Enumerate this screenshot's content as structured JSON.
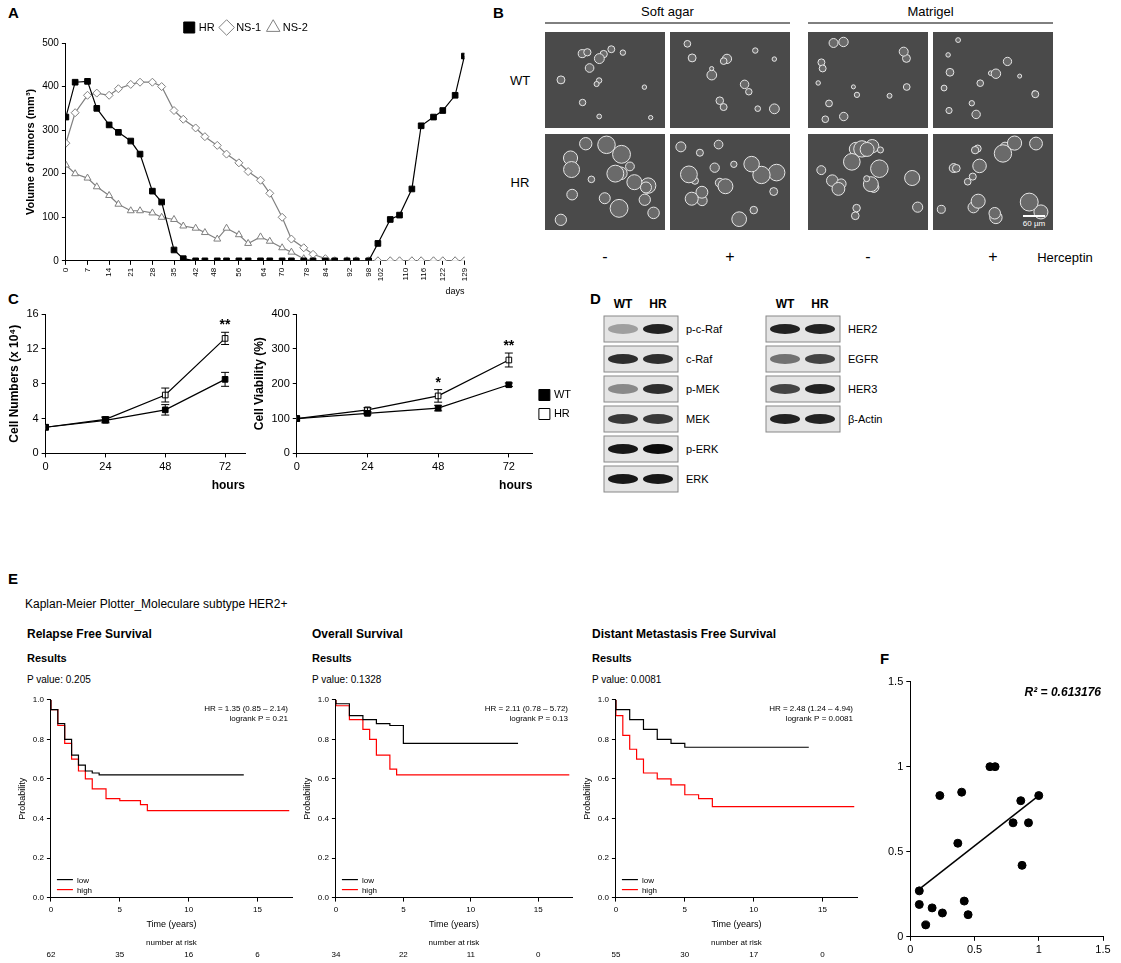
{
  "panel_labels": [
    "A",
    "B",
    "C",
    "D",
    "E",
    "F"
  ],
  "chart_data": [
    {
      "type": "line",
      "ylabel": "Volume of tumors (mm³)",
      "xlabel": "days",
      "x": [
        0,
        3,
        7,
        10,
        14,
        17,
        21,
        24,
        28,
        31,
        35,
        38,
        42,
        45,
        49,
        52,
        56,
        59,
        63,
        66,
        70,
        73,
        77,
        80,
        84,
        87,
        91,
        94,
        98,
        101,
        105,
        108,
        112,
        115,
        119,
        122,
        126,
        129
      ],
      "xlim": [
        0,
        129
      ],
      "xticks": [
        0,
        7,
        14,
        21,
        28,
        35,
        42,
        48,
        56,
        64,
        70,
        78,
        84,
        92,
        98,
        102,
        110,
        116,
        122,
        129
      ],
      "ylim": [
        0,
        500
      ],
      "yticks": [
        0,
        100,
        200,
        300,
        400,
        500
      ],
      "grid": false,
      "legend": "top",
      "series": [
        {
          "name": "HR",
          "color": "#000000",
          "marker": "square",
          "line_style": "solid",
          "values": [
            330,
            410,
            412,
            350,
            312,
            295,
            275,
            245,
            160,
            135,
            25,
            5,
            0,
            0,
            0,
            0,
            0,
            0,
            0,
            0,
            0,
            0,
            0,
            0,
            0,
            0,
            0,
            0,
            0,
            40,
            95,
            105,
            165,
            310,
            330,
            345,
            380,
            470
          ]
        },
        {
          "name": "NS-1",
          "color": "#808080",
          "marker": "diamond_open",
          "line_style": "solid",
          "values": [
            270,
            340,
            380,
            385,
            380,
            395,
            405,
            410,
            410,
            400,
            345,
            325,
            305,
            285,
            265,
            245,
            225,
            205,
            185,
            155,
            100,
            50,
            30,
            15,
            5,
            0,
            0,
            0,
            0,
            0,
            0,
            0,
            0,
            0,
            0,
            0,
            0,
            0
          ]
        },
        {
          "name": "NS-2",
          "color": "#808080",
          "marker": "triangle_open",
          "line_style": "solid",
          "values": [
            220,
            200,
            190,
            170,
            150,
            130,
            115,
            115,
            110,
            100,
            95,
            80,
            75,
            65,
            50,
            75,
            60,
            40,
            55,
            45,
            30,
            20,
            5,
            0,
            0,
            0,
            0,
            0,
            0,
            0,
            0,
            0,
            0,
            0,
            0,
            0,
            0,
            0
          ]
        }
      ]
    },
    {
      "type": "line",
      "ylabel": "Cell Numbers (x 10⁴)",
      "xlabel": "hours",
      "x": [
        0,
        24,
        48,
        72
      ],
      "xlim": [
        0,
        80
      ],
      "xticks": [
        0,
        24,
        48,
        72
      ],
      "ylim": [
        0,
        16
      ],
      "yticks": [
        0,
        4,
        8,
        12,
        16
      ],
      "grid": false,
      "series": [
        {
          "name": "WT",
          "color": "#000000",
          "marker": "square",
          "line_style": "solid",
          "values": [
            3,
            3.8,
            5.0,
            8.5
          ],
          "errors": [
            0,
            0.3,
            0.6,
            0.8
          ]
        },
        {
          "name": "HR",
          "color": "#000000",
          "marker": "square_open",
          "line_style": "solid",
          "values": [
            3,
            3.9,
            6.7,
            13.2
          ],
          "errors": [
            0,
            0.3,
            0.8,
            0.7
          ]
        }
      ],
      "annotations": [
        {
          "text": "**",
          "x": 72
        }
      ]
    },
    {
      "type": "line",
      "ylabel": "Cell Viability (%)",
      "xlabel": "hours",
      "x": [
        0,
        24,
        48,
        72
      ],
      "xlim": [
        0,
        80
      ],
      "xticks": [
        0,
        24,
        48,
        72
      ],
      "ylim": [
        0,
        400
      ],
      "yticks": [
        0,
        100,
        200,
        300,
        400
      ],
      "grid": false,
      "legend": "right",
      "series": [
        {
          "name": "WT",
          "color": "#000000",
          "marker": "square",
          "line_style": "solid",
          "values": [
            100,
            115,
            130,
            197
          ],
          "errors": [
            0,
            4,
            8,
            5
          ]
        },
        {
          "name": "HR",
          "color": "#000000",
          "marker": "square_open",
          "line_style": "solid",
          "values": [
            100,
            125,
            165,
            268
          ],
          "errors": [
            0,
            6,
            18,
            20
          ]
        }
      ],
      "annotations": [
        {
          "text": "*",
          "x": 48
        },
        {
          "text": "**",
          "x": 72
        }
      ]
    },
    {
      "type": "line",
      "title": "Relapse Free Survival",
      "subtitle": [
        "Results",
        "P value: 0.205"
      ],
      "ylabel": "Probability",
      "xlabel": "Time (years)",
      "xlim": [
        0,
        17.5
      ],
      "xticks": [
        0,
        5,
        10,
        15
      ],
      "ylim": [
        0,
        1
      ],
      "yticks": [
        {
          "value": 0,
          "label": "0.0"
        },
        0.2,
        0.4,
        0.6,
        0.8,
        {
          "value": 1,
          "label": "1.0"
        }
      ],
      "grid": false,
      "legend": "lower left",
      "annotations": [
        "HR = 1.35 (0.85 – 2.14)",
        "logrank P = 0.21"
      ],
      "series": [
        {
          "name": "low",
          "color": "#000000",
          "line_style": "step",
          "x": [
            0,
            0.5,
            1,
            1.5,
            2,
            2.5,
            3,
            3.5,
            4,
            14
          ],
          "values": [
            1,
            0.95,
            0.88,
            0.8,
            0.72,
            0.67,
            0.64,
            0.63,
            0.62,
            0.62
          ]
        },
        {
          "name": "high",
          "color": "#ff0000",
          "line_style": "step",
          "x": [
            0,
            0.5,
            1,
            1.5,
            2,
            2.5,
            3,
            4,
            5,
            6.5,
            7,
            7.5,
            17.3
          ],
          "values": [
            1,
            0.95,
            0.87,
            0.78,
            0.7,
            0.64,
            0.6,
            0.55,
            0.5,
            0.49,
            0.47,
            0.44,
            0.44
          ]
        }
      ],
      "number_at_risk": {
        "label": "number at risk",
        "x": [
          0,
          5,
          10,
          15
        ],
        "values": [
          62,
          35,
          16,
          6
        ]
      }
    },
    {
      "type": "line",
      "title": "Overall Survival",
      "subtitle": [
        "Results",
        "P value: 0.1328"
      ],
      "ylabel": "Probability",
      "xlabel": "Time (years)",
      "xlim": [
        0,
        17.5
      ],
      "xticks": [
        0,
        5,
        10,
        15
      ],
      "ylim": [
        0,
        1
      ],
      "yticks": [
        {
          "value": 0,
          "label": "0.0"
        },
        0.2,
        0.4,
        0.6,
        0.8,
        {
          "value": 1,
          "label": "1.0"
        }
      ],
      "grid": false,
      "legend": "lower left",
      "annotations": [
        "HR = 2.11 (0.78 – 5.72)",
        "logrank P = 0.13"
      ],
      "series": [
        {
          "name": "low",
          "color": "#000000",
          "line_style": "step",
          "x": [
            0,
            1,
            2,
            3,
            4,
            5,
            6,
            13.5
          ],
          "values": [
            1,
            0.98,
            0.92,
            0.9,
            0.88,
            0.87,
            0.78,
            0.78
          ]
        },
        {
          "name": "high",
          "color": "#ff0000",
          "line_style": "step",
          "x": [
            0,
            1,
            2,
            2.5,
            3,
            4,
            4.5,
            5,
            17.3
          ],
          "values": [
            1,
            0.97,
            0.9,
            0.85,
            0.8,
            0.72,
            0.65,
            0.62,
            0.62
          ]
        }
      ],
      "number_at_risk": {
        "label": "number at risk",
        "x": [
          0,
          5,
          10,
          15
        ],
        "values": [
          34,
          22,
          11,
          0
        ]
      }
    },
    {
      "type": "line",
      "title": "Distant Metastasis Free Survival",
      "subtitle": [
        "Results",
        "P value: 0.0081"
      ],
      "ylabel": "Probability",
      "xlabel": "Time (years)",
      "xlim": [
        0,
        17.5
      ],
      "xticks": [
        0,
        5,
        10,
        15
      ],
      "ylim": [
        0,
        1
      ],
      "yticks": [
        {
          "value": 0,
          "label": "0.0"
        },
        0.2,
        0.4,
        0.6,
        0.8,
        {
          "value": 1,
          "label": "1.0"
        }
      ],
      "grid": false,
      "legend": "lower left",
      "annotations": [
        "HR = 2.48 (1.24 – 4.94)",
        "logrank P = 0.0081"
      ],
      "series": [
        {
          "name": "low",
          "color": "#000000",
          "line_style": "step",
          "x": [
            0,
            1,
            2,
            3,
            4,
            5,
            6,
            14
          ],
          "values": [
            1,
            0.95,
            0.9,
            0.85,
            0.8,
            0.78,
            0.76,
            0.76
          ]
        },
        {
          "name": "high",
          "color": "#ff0000",
          "line_style": "step",
          "x": [
            0,
            0.5,
            1,
            1.5,
            2,
            3,
            4,
            5,
            6,
            7,
            8,
            17.3
          ],
          "values": [
            1,
            0.92,
            0.82,
            0.75,
            0.7,
            0.63,
            0.6,
            0.57,
            0.52,
            0.5,
            0.46,
            0.46
          ]
        }
      ],
      "number_at_risk": {
        "label": "number at risk",
        "x": [
          0,
          5,
          10,
          15
        ],
        "values": [
          55,
          30,
          17,
          0
        ]
      }
    },
    {
      "type": "scatter",
      "color": "#000000",
      "marker": "circle",
      "x": [
        0.07,
        0.07,
        0.12,
        0.17,
        0.23,
        0.25,
        0.37,
        0.4,
        0.42,
        0.45,
        0.62,
        0.66,
        0.8,
        0.86,
        0.87,
        0.92,
        1.0
      ],
      "values": [
        0.27,
        0.19,
        0.07,
        0.17,
        0.83,
        0.14,
        0.55,
        0.85,
        0.21,
        0.13,
        1.0,
        1.0,
        0.67,
        0.8,
        0.42,
        0.67,
        0.83
      ],
      "xlim": [
        0,
        1.5
      ],
      "xticks": [
        0,
        0.5,
        1,
        1.5
      ],
      "ylim": [
        0,
        1.5
      ],
      "yticks": [
        0,
        0.5,
        1,
        1.5
      ],
      "grid": false,
      "trendline": {
        "x": [
          0.07,
          1.0
        ],
        "values": [
          0.28,
          0.83
        ]
      },
      "annotations": [
        "R² = 0.613176"
      ]
    }
  ],
  "panel_b": {
    "column_groups": [
      "Soft agar",
      "Matrigel"
    ],
    "rows": [
      "WT",
      "HR"
    ],
    "treatment": {
      "label": "Herceptin",
      "levels": [
        "-",
        "+",
        "-",
        "+"
      ]
    },
    "scale_bar": "60 µm"
  },
  "panel_d": {
    "columns": [
      "WT",
      "HR"
    ],
    "groups": [
      [
        {
          "label": "p-c-Raf",
          "intensity": [
            0.3,
            0.85
          ]
        },
        {
          "label": "c-Raf",
          "intensity": [
            0.8,
            0.8
          ]
        },
        {
          "label": "p-MEK",
          "intensity": [
            0.4,
            0.8
          ]
        },
        {
          "label": "MEK",
          "intensity": [
            0.75,
            0.75
          ]
        },
        {
          "label": "p-ERK",
          "intensity": [
            0.9,
            0.95
          ]
        },
        {
          "label": "ERK",
          "intensity": [
            0.9,
            0.9
          ]
        }
      ],
      [
        {
          "label": "HER2",
          "intensity": [
            0.85,
            0.85
          ]
        },
        {
          "label": "EGFR",
          "intensity": [
            0.5,
            0.7
          ]
        },
        {
          "label": "HER3",
          "intensity": [
            0.7,
            0.85
          ]
        },
        {
          "label": "β-Actin",
          "intensity": [
            0.85,
            0.85
          ]
        }
      ]
    ]
  },
  "panel_e": {
    "title": "Kaplan-Meier Plotter_Moleculare subtype HER2+"
  }
}
